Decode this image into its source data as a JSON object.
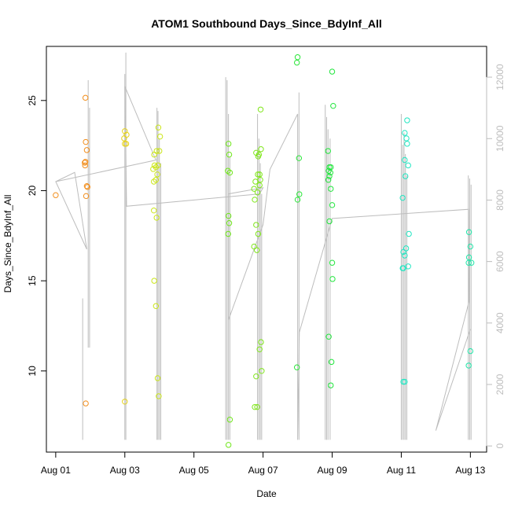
{
  "chart_data": {
    "type": "scatter",
    "title": "ATOM1 Southbound Days_Since_BdyInf_All",
    "xlabel": "Date",
    "ylabel": "Days_Since_BdyInf_All",
    "x_ticks": [
      "Aug 01",
      "Aug 03",
      "Aug 05",
      "Aug 07",
      "Aug 09",
      "Aug 11",
      "Aug 13"
    ],
    "x_tick_values": [
      0,
      2,
      4,
      6,
      8,
      10,
      12
    ],
    "xlim": [
      -0.27,
      12.47
    ],
    "y_ticks": [
      10,
      15,
      20,
      25
    ],
    "ylim": [
      5.5,
      28.0
    ],
    "y2_ticks": [
      0,
      2000,
      4000,
      6000,
      8000,
      10000,
      12000
    ],
    "y2lim": [
      -200,
      13000
    ],
    "grid": false,
    "secondary_series_color": "#bdbdbd",
    "series": [
      {
        "color": "#f28e1c",
        "points": [
          [
            0.0,
            19.75
          ],
          [
            0.86,
            25.15
          ],
          [
            0.87,
            22.7
          ],
          [
            0.84,
            21.55
          ],
          [
            0.86,
            21.6
          ],
          [
            0.85,
            21.4
          ],
          [
            0.9,
            22.25
          ],
          [
            0.92,
            20.2
          ],
          [
            0.9,
            20.25
          ],
          [
            0.88,
            19.7
          ],
          [
            0.87,
            8.2
          ]
        ]
      },
      {
        "color": "#e6d21a",
        "points": [
          [
            2.0,
            23.3
          ],
          [
            2.05,
            23.1
          ],
          [
            1.98,
            22.9
          ],
          [
            2.0,
            22.6
          ],
          [
            2.04,
            22.6
          ],
          [
            2.0,
            8.3
          ]
        ]
      },
      {
        "color": "#cbe61a",
        "points": [
          [
            2.97,
            23.5
          ],
          [
            3.02,
            23.0
          ],
          [
            2.92,
            22.2
          ],
          [
            3.0,
            22.2
          ],
          [
            2.85,
            22.0
          ],
          [
            2.86,
            21.4
          ],
          [
            2.9,
            21.3
          ],
          [
            2.96,
            21.4
          ],
          [
            2.82,
            21.2
          ],
          [
            2.94,
            20.9
          ],
          [
            2.9,
            20.6
          ],
          [
            2.84,
            20.5
          ],
          [
            2.84,
            18.9
          ],
          [
            2.92,
            18.5
          ],
          [
            2.85,
            15.0
          ],
          [
            2.9,
            13.6
          ],
          [
            2.95,
            9.6
          ],
          [
            2.98,
            8.6
          ]
        ]
      },
      {
        "color": "#6fe61a",
        "points": [
          [
            5.0,
            22.6
          ],
          [
            5.02,
            22.0
          ],
          [
            4.98,
            21.1
          ],
          [
            5.04,
            21.0
          ],
          [
            5.0,
            18.6
          ],
          [
            5.02,
            18.2
          ],
          [
            4.99,
            17.6
          ],
          [
            5.04,
            7.3
          ],
          [
            5.0,
            5.9
          ]
        ]
      },
      {
        "color": "#7fe61a",
        "points": [
          [
            5.93,
            24.5
          ],
          [
            5.94,
            22.3
          ],
          [
            5.8,
            22.1
          ],
          [
            5.88,
            22.0
          ],
          [
            5.86,
            21.9
          ],
          [
            5.85,
            20.9
          ],
          [
            5.9,
            20.9
          ],
          [
            5.92,
            20.6
          ],
          [
            5.78,
            20.5
          ],
          [
            5.9,
            20.3
          ],
          [
            5.74,
            20.1
          ],
          [
            5.84,
            19.9
          ],
          [
            5.76,
            19.5
          ],
          [
            5.8,
            18.1
          ],
          [
            5.86,
            17.6
          ],
          [
            5.74,
            16.9
          ],
          [
            5.82,
            16.7
          ],
          [
            5.94,
            11.6
          ],
          [
            5.9,
            11.2
          ],
          [
            5.96,
            10.0
          ],
          [
            5.8,
            9.7
          ],
          [
            5.76,
            8.0
          ],
          [
            5.83,
            8.0
          ]
        ]
      },
      {
        "color": "#2be63a",
        "points": [
          [
            7.0,
            27.4
          ],
          [
            6.98,
            27.1
          ],
          [
            7.04,
            21.8
          ],
          [
            7.05,
            19.8
          ],
          [
            7.0,
            19.5
          ],
          [
            6.98,
            10.2
          ]
        ]
      },
      {
        "color": "#20e63c",
        "points": [
          [
            8.0,
            26.6
          ],
          [
            8.03,
            24.7
          ],
          [
            7.88,
            22.2
          ],
          [
            7.92,
            21.3
          ],
          [
            7.96,
            21.3
          ],
          [
            7.9,
            21.1
          ],
          [
            7.95,
            21.0
          ],
          [
            7.92,
            20.8
          ],
          [
            7.89,
            20.6
          ],
          [
            7.96,
            20.1
          ],
          [
            8.0,
            19.2
          ],
          [
            7.92,
            18.3
          ],
          [
            8.0,
            16.0
          ],
          [
            8.01,
            15.1
          ],
          [
            7.9,
            11.9
          ],
          [
            7.98,
            10.5
          ],
          [
            7.96,
            9.2
          ]
        ]
      },
      {
        "color": "#22e6c2",
        "points": [
          [
            10.17,
            23.9
          ],
          [
            10.1,
            23.2
          ],
          [
            10.15,
            22.9
          ],
          [
            10.17,
            22.6
          ],
          [
            10.1,
            21.7
          ],
          [
            10.2,
            21.4
          ],
          [
            10.12,
            20.8
          ],
          [
            10.04,
            19.6
          ],
          [
            10.22,
            17.6
          ],
          [
            10.06,
            16.6
          ],
          [
            10.14,
            16.8
          ],
          [
            10.1,
            16.4
          ],
          [
            10.06,
            15.7
          ],
          [
            10.2,
            15.8
          ],
          [
            10.04,
            15.7
          ],
          [
            10.06,
            9.4
          ],
          [
            10.1,
            9.4
          ]
        ]
      },
      {
        "color": "#1ee6a8",
        "points": [
          [
            11.96,
            17.7
          ],
          [
            12.0,
            16.9
          ],
          [
            11.96,
            16.3
          ],
          [
            12.03,
            16.0
          ],
          [
            11.95,
            16.0
          ],
          [
            12.0,
            11.1
          ],
          [
            11.95,
            10.3
          ]
        ]
      }
    ],
    "secondary_path": [
      [
        0.0,
        8600
      ],
      [
        0.55,
        8900
      ],
      [
        0.9,
        6400
      ],
      [
        0.0,
        8600
      ],
      [
        2.9,
        9300
      ],
      [
        2.0,
        11700
      ],
      [
        2.05,
        7800
      ],
      [
        5.9,
        8200
      ],
      [
        6.0,
        8400
      ],
      [
        5.0,
        8200
      ],
      [
        5.0,
        4100
      ],
      [
        6.0,
        7200
      ],
      [
        6.2,
        9000
      ],
      [
        7.0,
        10800
      ],
      [
        7.0,
        200
      ],
      [
        7.05,
        3700
      ],
      [
        8.0,
        7400
      ],
      [
        11.95,
        7700
      ],
      [
        11.96,
        4700
      ],
      [
        11.0,
        500
      ],
      [
        12.0,
        3800
      ]
    ],
    "secondary_vlines": [
      {
        "x": 0.78,
        "y0": 200,
        "y1": 4800
      },
      {
        "x": 0.94,
        "y0": 3200,
        "y1": 11900
      },
      {
        "x": 0.98,
        "y0": 3200,
        "y1": 11000
      },
      {
        "x": 2.03,
        "y0": 200,
        "y1": 12800
      },
      {
        "x": 2.0,
        "y0": 200,
        "y1": 12100
      },
      {
        "x": 2.93,
        "y0": 200,
        "y1": 11000
      },
      {
        "x": 2.96,
        "y0": 200,
        "y1": 10900
      },
      {
        "x": 3.0,
        "y0": 200,
        "y1": 10000
      },
      {
        "x": 3.04,
        "y0": 200,
        "y1": 9200
      },
      {
        "x": 4.92,
        "y0": 200,
        "y1": 12000
      },
      {
        "x": 4.96,
        "y0": 200,
        "y1": 11900
      },
      {
        "x": 5.0,
        "y0": 200,
        "y1": 10800
      },
      {
        "x": 5.04,
        "y0": 200,
        "y1": 9400
      },
      {
        "x": 5.84,
        "y0": 200,
        "y1": 10800
      },
      {
        "x": 5.88,
        "y0": 200,
        "y1": 10000
      },
      {
        "x": 5.92,
        "y0": 200,
        "y1": 9200
      },
      {
        "x": 5.96,
        "y0": 200,
        "y1": 8200
      },
      {
        "x": 7.04,
        "y0": 200,
        "y1": 11500
      },
      {
        "x": 7.8,
        "y0": 200,
        "y1": 11100
      },
      {
        "x": 7.84,
        "y0": 200,
        "y1": 10700
      },
      {
        "x": 7.88,
        "y0": 200,
        "y1": 10300
      },
      {
        "x": 7.94,
        "y0": 200,
        "y1": 10000
      },
      {
        "x": 10.0,
        "y0": 200,
        "y1": 10800
      },
      {
        "x": 10.04,
        "y0": 200,
        "y1": 9800
      },
      {
        "x": 10.08,
        "y0": 200,
        "y1": 10200
      },
      {
        "x": 10.12,
        "y0": 200,
        "y1": 9500
      },
      {
        "x": 10.16,
        "y0": 200,
        "y1": 8800
      },
      {
        "x": 11.94,
        "y0": 200,
        "y1": 8800
      },
      {
        "x": 11.98,
        "y0": 200,
        "y1": 8700
      },
      {
        "x": 12.02,
        "y0": 200,
        "y1": 8500
      }
    ]
  }
}
